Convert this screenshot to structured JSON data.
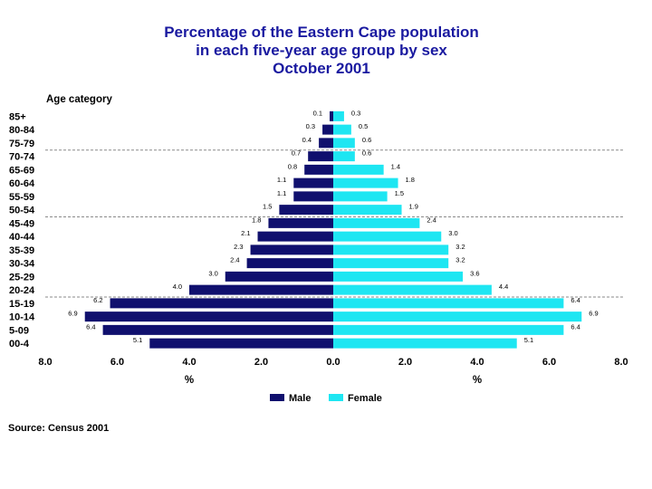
{
  "chart_data": {
    "type": "bar",
    "orientation": "horizontal-population-pyramid",
    "title": [
      "Percentage of the Eastern Cape population",
      "in each five-year age group by sex",
      "October 2001"
    ],
    "y_axis_title": "Age category",
    "x_axis_unit_label": "%",
    "xlim": [
      -8.0,
      8.0
    ],
    "x_ticks": [
      "8.0",
      "6.0",
      "4.0",
      "2.0",
      "0.0",
      "2.0",
      "4.0",
      "6.0",
      "8.0"
    ],
    "categories": [
      "85+",
      "80-84",
      "75-79",
      "70-74",
      "65-69",
      "60-64",
      "55-59",
      "50-54",
      "45-49",
      "40-44",
      "35-39",
      "30-34",
      "25-29",
      "20-24",
      "15-19",
      "10-14",
      "5-09",
      "00-4"
    ],
    "series": [
      {
        "name": "Male",
        "color": "#10106e",
        "values": [
          0.1,
          0.3,
          0.4,
          0.7,
          0.8,
          1.1,
          1.1,
          1.5,
          1.8,
          2.1,
          2.3,
          2.4,
          3.0,
          4.0,
          6.2,
          6.9,
          6.4,
          5.1
        ],
        "labels": [
          "0.1",
          "0.3",
          "0.4",
          "0.7",
          "0.8",
          "1.1",
          "1.1",
          "1.5",
          "1.8",
          "2.1",
          "2.3",
          "2.4",
          "3.0",
          "4.0",
          "6.2",
          "6.9",
          "6.4",
          "5.1"
        ]
      },
      {
        "name": "Female",
        "color": "#1ee6f2",
        "values": [
          0.3,
          0.5,
          0.6,
          0.6,
          1.4,
          1.8,
          1.5,
          1.9,
          2.4,
          3.0,
          3.2,
          3.2,
          3.6,
          4.4,
          6.4,
          6.9,
          6.4,
          5.1
        ],
        "labels": [
          "0.3",
          "0.5",
          "0.6",
          "0.6",
          "1.4",
          "1.8",
          "1.5",
          "1.9",
          "2.4",
          "3.0",
          "3.2",
          "3.2",
          "3.6",
          "4.4",
          "6.4",
          "6.9",
          "6.4",
          "5.1"
        ]
      }
    ],
    "dashed_separators_after": [
      "75-79",
      "50-54",
      "20-24"
    ],
    "source": "Source: Census 2001"
  }
}
